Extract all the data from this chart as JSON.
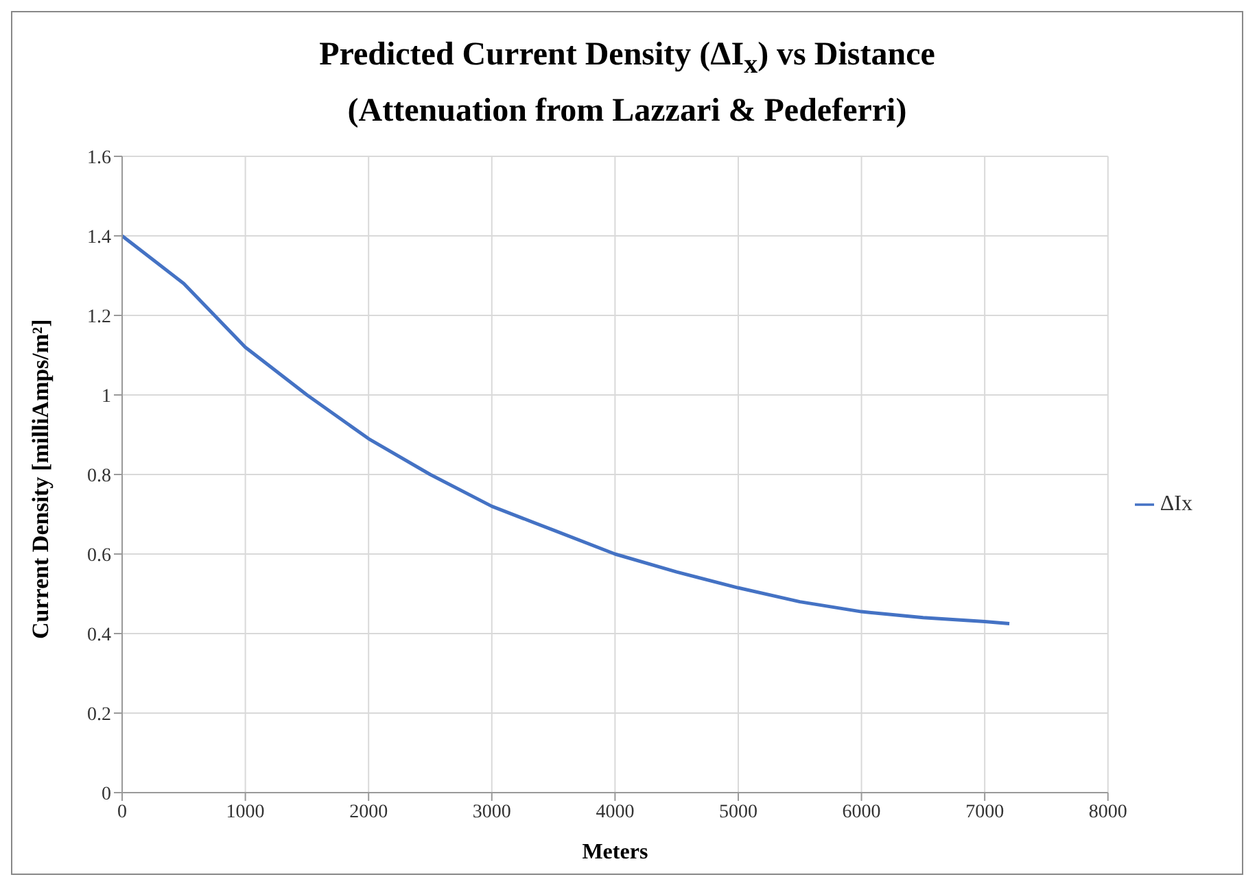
{
  "chart_data": {
    "type": "line",
    "title": "Predicted Current Density (ΔI$_{x}$) vs Distance",
    "subtitle": "(Attenuation from Lazzari & Pedeferri)",
    "xlabel": "Meters",
    "ylabel": "Current  Density [milliAmps/m²]",
    "x": [
      0,
      250,
      500,
      1000,
      1500,
      2000,
      2500,
      3000,
      3500,
      4000,
      4500,
      5000,
      5500,
      6000,
      6500,
      7000,
      7200
    ],
    "series": [
      {
        "name": "ΔIx",
        "color": "#4472c4",
        "values": [
          1.4,
          1.34,
          1.28,
          1.12,
          1.0,
          0.89,
          0.8,
          0.72,
          0.66,
          0.6,
          0.555,
          0.515,
          0.48,
          0.455,
          0.44,
          0.43,
          0.425
        ]
      }
    ],
    "xlim": [
      0,
      8000
    ],
    "xticks": [
      0,
      1000,
      2000,
      3000,
      4000,
      5000,
      6000,
      7000,
      8000
    ],
    "ylim": [
      0,
      1.6
    ],
    "yticks": [
      0,
      0.2,
      0.4,
      0.6,
      0.8,
      1,
      1.2,
      1.4,
      1.6
    ],
    "grid": true,
    "legend": "right",
    "marker": "none",
    "line_style": "solid"
  }
}
